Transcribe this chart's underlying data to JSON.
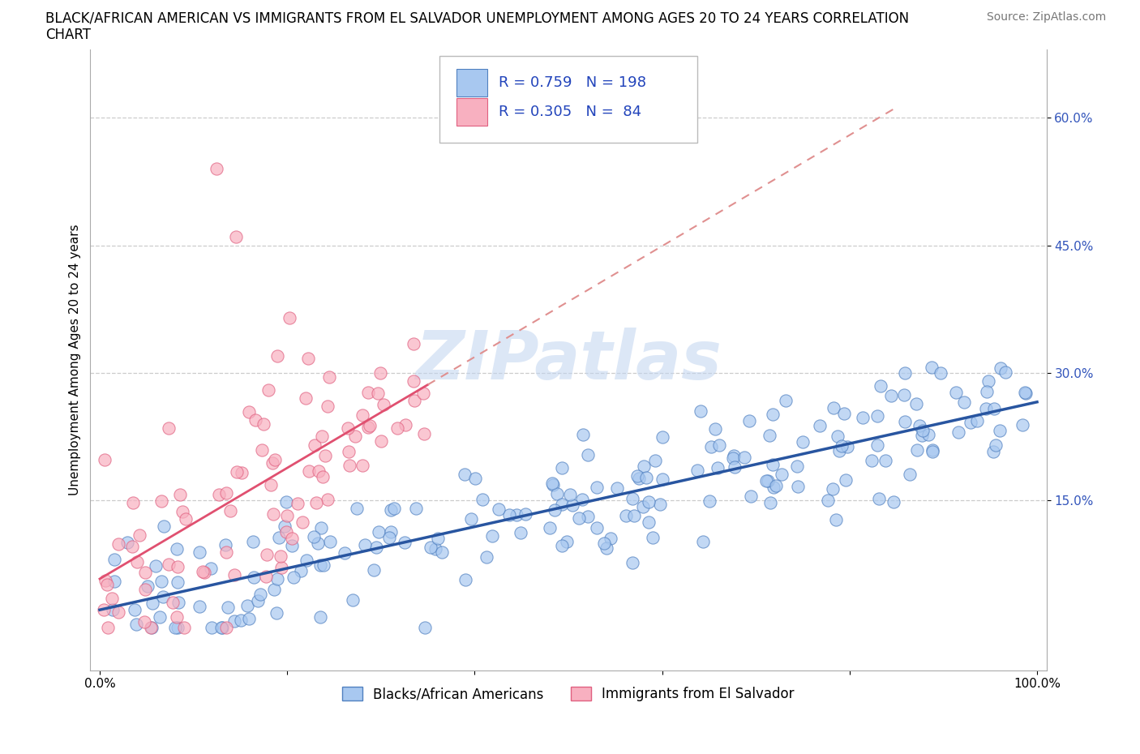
{
  "title_line1": "BLACK/AFRICAN AMERICAN VS IMMIGRANTS FROM EL SALVADOR UNEMPLOYMENT AMONG AGES 20 TO 24 YEARS CORRELATION",
  "title_line2": "CHART",
  "source": "Source: ZipAtlas.com",
  "ylabel": "Unemployment Among Ages 20 to 24 years",
  "xlim": [
    -0.01,
    1.01
  ],
  "ylim": [
    -0.05,
    0.68
  ],
  "ytick_positions": [
    0.15,
    0.3,
    0.45,
    0.6
  ],
  "ytick_labels": [
    "15.0%",
    "30.0%",
    "45.0%",
    "60.0%"
  ],
  "blue_color": "#a8c8f0",
  "pink_color": "#f8b0c0",
  "blue_edge": "#5080c0",
  "pink_edge": "#e06080",
  "trend_blue": "#2855a0",
  "trend_pink": "#e05070",
  "trend_pink_dash": "#e09090",
  "R_blue": 0.759,
  "N_blue": 198,
  "R_pink": 0.305,
  "N_pink": 84,
  "legend_label_blue": "Blacks/African Americans",
  "legend_label_pink": "Immigrants from El Salvador",
  "watermark": "ZIPatlas",
  "watermark_color": "#c0d4f0",
  "background_color": "#ffffff",
  "grid_color": "#cccccc",
  "title_fontsize": 12,
  "axis_label_fontsize": 11,
  "tick_fontsize": 11,
  "legend_fontsize": 12,
  "source_fontsize": 10
}
